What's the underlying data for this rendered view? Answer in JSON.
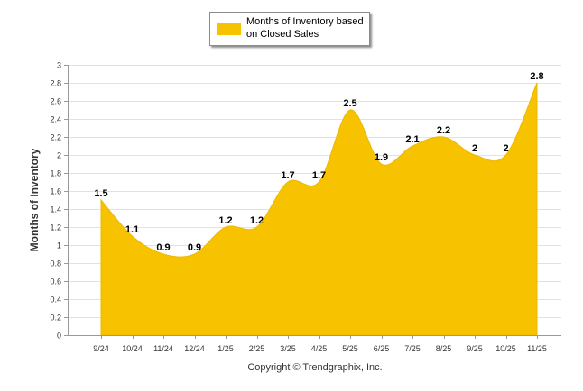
{
  "colors": {
    "fill": "#F7C200",
    "stroke": "#EDB900",
    "gridline": "#E2E2E2",
    "axis": "#999999",
    "text": "#333333"
  },
  "chart_data": {
    "type": "area",
    "title": "",
    "xlabel": "",
    "ylabel": "Months of Inventory",
    "categories": [
      "9/24",
      "10/24",
      "11/24",
      "12/24",
      "1/25",
      "2/25",
      "3/25",
      "4/25",
      "5/25",
      "6/25",
      "7/25",
      "8/25",
      "9/25",
      "10/25",
      "11/25"
    ],
    "series": [
      {
        "name": "Months of Inventory based on Closed Sales",
        "values": [
          1.5,
          1.1,
          0.9,
          0.9,
          1.2,
          1.2,
          1.7,
          1.7,
          2.5,
          1.9,
          2.1,
          2.2,
          2,
          2,
          2.8
        ],
        "data_labels": [
          "1.5",
          "1.1",
          "0.9",
          "0.9",
          "1.2",
          "1.2",
          "1.7",
          "1.7",
          "2.5",
          "1.9",
          "2.1",
          "2.2",
          "2",
          "2",
          "2.8"
        ]
      }
    ],
    "ylim": [
      0,
      3
    ],
    "yticks": [
      0,
      0.2,
      0.4,
      0.6,
      0.8,
      1,
      1.2,
      1.4,
      1.6,
      1.8,
      2,
      2.2,
      2.4,
      2.6,
      2.8,
      3
    ],
    "ytick_labels": [
      "0",
      "0.2",
      "0.4",
      "0.6",
      "0.8",
      "1",
      "1.2",
      "1.4",
      "1.6",
      "1.8",
      "2",
      "2.2",
      "2.4",
      "2.6",
      "2.8",
      "3"
    ],
    "grid": true,
    "legend_position": "top-center"
  },
  "legend": {
    "label_line1": "Months of Inventory based",
    "label_line2": "on Closed Sales"
  },
  "footer": {
    "copyright": "Copyright © Trendgraphix, Inc."
  }
}
